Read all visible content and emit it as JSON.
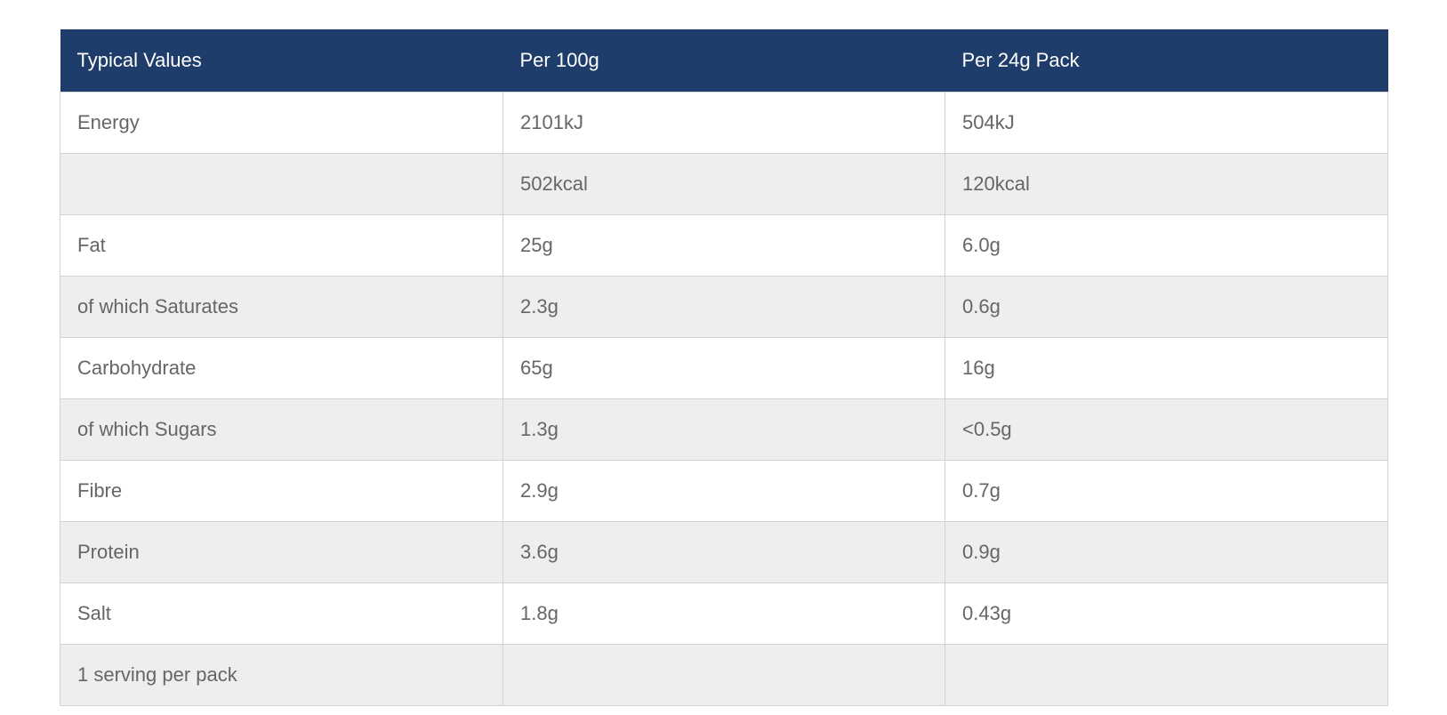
{
  "colors": {
    "header_bg": "#1f3d6b",
    "stripe": "#eeeeee",
    "text": "#666666"
  },
  "table": {
    "headers": [
      "Typical Values",
      "Per 100g",
      "Per 24g Pack"
    ],
    "rows": [
      [
        "Energy",
        "2101kJ",
        "504kJ"
      ],
      [
        "",
        "502kcal",
        "120kcal"
      ],
      [
        "Fat",
        "25g",
        "6.0g"
      ],
      [
        "of which Saturates",
        "2.3g",
        "0.6g"
      ],
      [
        "Carbohydrate",
        "65g",
        "16g"
      ],
      [
        "of which Sugars",
        "1.3g",
        "<0.5g"
      ],
      [
        "Fibre",
        "2.9g",
        "0.7g"
      ],
      [
        "Protein",
        "3.6g",
        "0.9g"
      ],
      [
        "Salt",
        "1.8g",
        "0.43g"
      ],
      [
        "1 serving per pack",
        "",
        ""
      ]
    ]
  }
}
